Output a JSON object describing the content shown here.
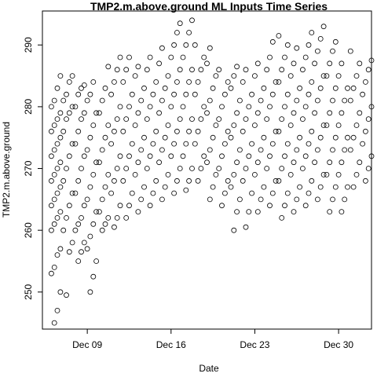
{
  "chart_data": {
    "type": "scatter",
    "title": "TMP2.m.above.ground ML Inputs Time Series",
    "xlabel": "Date",
    "ylabel": "TMP2.m.above.ground",
    "x_ticks": [
      "Dec 09",
      "Dec 16",
      "Dec 23",
      "Dec 30"
    ],
    "x_tick_dates": [
      "2019-12-09",
      "2019-12-16",
      "2019-12-23",
      "2019-12-30"
    ],
    "y_ticks": [
      250,
      260,
      270,
      280,
      290
    ],
    "xlim": [
      "2019-12-05T06:00",
      "2020-01-01T18:00"
    ],
    "ylim": [
      244,
      295.5
    ],
    "grid": false,
    "marker": "open-circle",
    "series": [
      {
        "columns": [
          {
            "date": "2019-12-06",
            "values": [
              245,
              247,
              250,
              253,
              254,
              256,
              257,
              260,
              261,
              262,
              263,
              264,
              265,
              266,
              267,
              268,
              269,
              270,
              271,
              272,
              273,
              274,
              275,
              276,
              277,
              278,
              279,
              280,
              281,
              283,
              285
            ]
          },
          {
            "date": "2019-12-07",
            "values": [
              249.5,
              256.5,
              258,
              260,
              262,
              264,
              266,
              268,
              270,
              272,
              274,
              276,
              278,
              279,
              280,
              281,
              282,
              284,
              285
            ]
          },
          {
            "date": "2019-12-08",
            "values": [
              255,
              256.5,
              258,
              260,
              261,
              262,
              264,
              266,
              268,
              270,
              272,
              274,
              276,
              278,
              279,
              280,
              282,
              283,
              283.5
            ]
          },
          {
            "date": "2019-12-09",
            "values": [
              250,
              252.5,
              255,
              257,
              259,
              261,
              263,
              265,
              267,
              269,
              271,
              273,
              275,
              277,
              279,
              281,
              282,
              284
            ]
          },
          {
            "date": "2019-12-10",
            "values": [
              260,
              261,
              262,
              263,
              265,
              267,
              269,
              271,
              273,
              275,
              277,
              279,
              281,
              283,
              286.5
            ]
          },
          {
            "date": "2019-12-11",
            "values": [
              260.5,
              262,
              264,
              266,
              268,
              270,
              272,
              274,
              276,
              278,
              280,
              282,
              284,
              286,
              288
            ]
          },
          {
            "date": "2019-12-12",
            "values": [
              262,
              264,
              266,
              268,
              270,
              272,
              274,
              276,
              278,
              280,
              282,
              284,
              286,
              288
            ]
          },
          {
            "date": "2019-12-13",
            "values": [
              263,
              265,
              267,
              269,
              271,
              273,
              275,
              277,
              279,
              281,
              283,
              285,
              286.5
            ]
          },
          {
            "date": "2019-12-14",
            "values": [
              264,
              266,
              268,
              270,
              272,
              274,
              276,
              278,
              280,
              282,
              284,
              286,
              288
            ]
          },
          {
            "date": "2019-12-15",
            "values": [
              265,
              267,
              269,
              271,
              273,
              275,
              277,
              279,
              281,
              283,
              285,
              287,
              289.5
            ]
          },
          {
            "date": "2019-12-16",
            "values": [
              266,
              268,
              270,
              272,
              274,
              276,
              278,
              280,
              282,
              284,
              286,
              288,
              290,
              292,
              293.5
            ]
          },
          {
            "date": "2019-12-17",
            "values": [
              266.5,
              268,
              270,
              272,
              274,
              276,
              278,
              280,
              282,
              284,
              286,
              288,
              290,
              292,
              294
            ]
          },
          {
            "date": "2019-12-18",
            "values": [
              268,
              270,
              272,
              274,
              276,
              278,
              280,
              282,
              284,
              286,
              288,
              290
            ]
          },
          {
            "date": "2019-12-19",
            "values": [
              265,
              267,
              269,
              271,
              273,
              275,
              277,
              279,
              281,
              283,
              285,
              287,
              289.5
            ]
          },
          {
            "date": "2019-12-20",
            "values": [
              264,
              266,
              268,
              270,
              272,
              274,
              276,
              278,
              280,
              282,
              284,
              286
            ]
          },
          {
            "date": "2019-12-21",
            "values": [
              260,
              263,
              265,
              267,
              269,
              271,
              273,
              275,
              277,
              279,
              281,
              283,
              285,
              286.5
            ]
          },
          {
            "date": "2019-12-22",
            "values": [
              260.5,
              263,
              266,
              268,
              270,
              272,
              274,
              276,
              278,
              280,
              282,
              284,
              286
            ]
          },
          {
            "date": "2019-12-23",
            "values": [
              263,
              265,
              267,
              269,
              271,
              273,
              275,
              277,
              279,
              281,
              283,
              285,
              287
            ]
          },
          {
            "date": "2019-12-24",
            "values": [
              264,
              266,
              268,
              270,
              272,
              274,
              276,
              278,
              280,
              282,
              284,
              286,
              288,
              290.5
            ]
          },
          {
            "date": "2019-12-25",
            "values": [
              262,
              264,
              266,
              268,
              270,
              272,
              274,
              276,
              278,
              280,
              282,
              284,
              286,
              288,
              290,
              291.5
            ]
          },
          {
            "date": "2019-12-26",
            "values": [
              263,
              265,
              267,
              269,
              271,
              273,
              275,
              277,
              279,
              281,
              283,
              285,
              287,
              289.5
            ]
          },
          {
            "date": "2019-12-27",
            "values": [
              264,
              266,
              268,
              270,
              272,
              274,
              276,
              278,
              280,
              282,
              284,
              286,
              288,
              290,
              292
            ]
          },
          {
            "date": "2019-12-28",
            "values": [
              265,
              267,
              269,
              271,
              273,
              275,
              277,
              279,
              281,
              283,
              285,
              287,
              289,
              291,
              293
            ]
          },
          {
            "date": "2019-12-29",
            "values": [
              263,
              265,
              267,
              269,
              271,
              273,
              275,
              277,
              279,
              281,
              283,
              285,
              287,
              289,
              290.5
            ]
          },
          {
            "date": "2019-12-30",
            "values": [
              263,
              265,
              267,
              269,
              271,
              273,
              275,
              277,
              279,
              281,
              283,
              285,
              287
            ]
          },
          {
            "date": "2019-12-31",
            "values": [
              267,
              269,
              271,
              273,
              275,
              277,
              279,
              281,
              283,
              285,
              287,
              289
            ]
          },
          {
            "date": "2020-01-01",
            "values": [
              268,
              270,
              272,
              274,
              276,
              278,
              280,
              282,
              284,
              286,
              287.5
            ]
          }
        ]
      }
    ]
  }
}
